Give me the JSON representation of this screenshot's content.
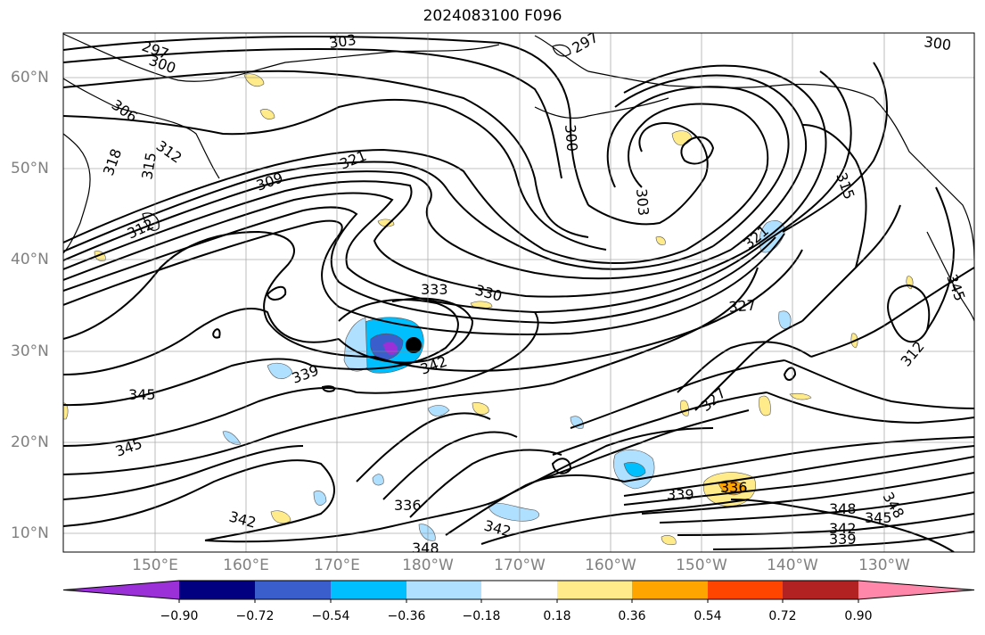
{
  "title": "2024083100 F096",
  "lat_labels": [
    {
      "text": "60°N",
      "lat": 60
    },
    {
      "text": "50°N",
      "lat": 50
    },
    {
      "text": "40°N",
      "lat": 40
    },
    {
      "text": "30°N",
      "lat": 30
    },
    {
      "text": "20°N",
      "lat": 20
    },
    {
      "text": "10°N",
      "lat": 10
    }
  ],
  "lon_labels": [
    {
      "text": "150°E",
      "lon": 150
    },
    {
      "text": "160°E",
      "lon": 160
    },
    {
      "text": "170°E",
      "lon": 170
    },
    {
      "text": "180°W",
      "lon": 180
    },
    {
      "text": "170°W",
      "lon": 190
    },
    {
      "text": "160°W",
      "lon": 200
    },
    {
      "text": "150°W",
      "lon": 210
    },
    {
      "text": "140°W",
      "lon": 220
    },
    {
      "text": "130°W",
      "lon": 230
    }
  ],
  "colorbar": {
    "labels": [
      "−0.90",
      "−0.72",
      "−0.54",
      "−0.36",
      "−0.18",
      "0.18",
      "0.36",
      "0.54",
      "0.72",
      "0.90"
    ],
    "colors": [
      "#9b30d9",
      "#000080",
      "#3a5fcd",
      "#00bfff",
      "#b0e0ff",
      "#ffffff",
      "#ffeb8a",
      "#ffa500",
      "#ff4500",
      "#b22222",
      "#ff88aa"
    ]
  },
  "contour_labels": [
    "297",
    "300",
    "303",
    "297",
    "300",
    "306",
    "312",
    "318",
    "315",
    "309",
    "321",
    "300",
    "303",
    "315",
    "312",
    "321",
    "333",
    "330",
    "327",
    "339",
    "342",
    "345",
    "345",
    "327",
    "312",
    "342",
    "336",
    "342",
    "348",
    "339",
    "336",
    "348",
    "345",
    "348",
    "342",
    "339",
    "345"
  ]
}
